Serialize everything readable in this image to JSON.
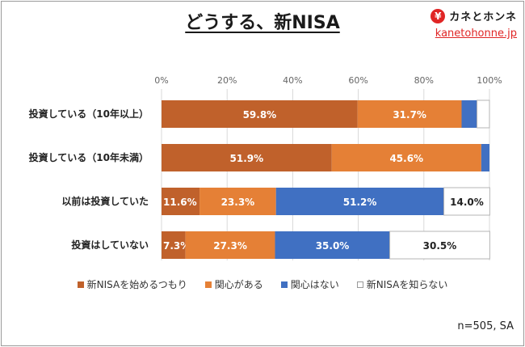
{
  "header": {
    "title": "どうする、新NISA",
    "brand": {
      "logo_mark": "¥",
      "name": "カネとホンネ",
      "url": "kanetohonne.jp"
    }
  },
  "chart_data": {
    "type": "bar",
    "orientation": "horizontal",
    "stacked": true,
    "title": "どうする、新NISA",
    "xlabel": "",
    "ylabel": "",
    "xlim": [
      0,
      100
    ],
    "x_ticks": [
      "0%",
      "20%",
      "40%",
      "60%",
      "80%",
      "100%"
    ],
    "grid": true,
    "legend_position": "bottom",
    "categories": [
      "投資している（10年以上）",
      "投資している（10年未満）",
      "以前は投資していた",
      "投資はしていない"
    ],
    "series": [
      {
        "name": "新NISAを始めるつもり",
        "color": "#c0612b",
        "values": [
          59.8,
          51.9,
          11.6,
          7.3
        ],
        "labels": [
          "59.8%",
          "51.9%",
          "11.6%",
          "7.3%"
        ]
      },
      {
        "name": "関心がある",
        "color": "#e58036",
        "values": [
          31.7,
          45.6,
          23.3,
          27.3
        ],
        "labels": [
          "31.7%",
          "45.6%",
          "23.3%",
          "27.3%"
        ]
      },
      {
        "name": "関心はない",
        "color": "#4070c2",
        "values": [
          4.7,
          2.5,
          51.2,
          35.0
        ],
        "labels": [
          "",
          "",
          "51.2%",
          "35.0%"
        ]
      },
      {
        "name": "新NISAを知らない",
        "color": "#ffffff",
        "values": [
          3.8,
          0.0,
          14.0,
          30.5
        ],
        "labels": [
          "",
          "",
          "14.0%",
          "30.5%"
        ]
      }
    ]
  },
  "footer": {
    "note": "n=505, SA"
  }
}
